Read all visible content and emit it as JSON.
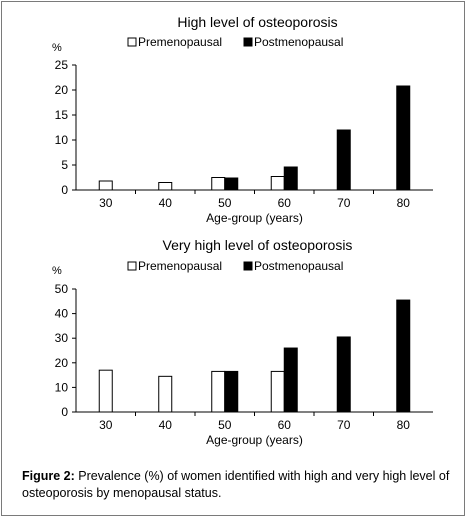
{
  "chart_data": [
    {
      "type": "bar",
      "title": "High level of osteoporosis",
      "xlabel": "Age-group (years)",
      "ylabel": "%",
      "categories": [
        "30",
        "40",
        "50",
        "60",
        "70",
        "80"
      ],
      "ylim": [
        0,
        25
      ],
      "yticks": [
        "0",
        "5",
        "10",
        "15",
        "20",
        "25"
      ],
      "legend_position": "top",
      "grid": false,
      "series": [
        {
          "name": "Premenopausal",
          "color": "#ffffff",
          "values": [
            1.8,
            1.5,
            2.5,
            2.7,
            null,
            null
          ]
        },
        {
          "name": "Postmenopausal",
          "color": "#000000",
          "values": [
            null,
            null,
            2.4,
            4.6,
            12.0,
            20.8
          ]
        }
      ]
    },
    {
      "type": "bar",
      "title": "Very high level of osteoporosis",
      "xlabel": "Age-group (years)",
      "ylabel": "%",
      "categories": [
        "30",
        "40",
        "50",
        "60",
        "70",
        "80"
      ],
      "ylim": [
        0,
        50
      ],
      "yticks": [
        "0",
        "10",
        "20",
        "30",
        "40",
        "50"
      ],
      "legend_position": "top",
      "grid": false,
      "series": [
        {
          "name": "Premenopausal",
          "color": "#ffffff",
          "values": [
            17.0,
            14.5,
            16.5,
            16.5,
            null,
            null
          ]
        },
        {
          "name": "Postmenopausal",
          "color": "#000000",
          "values": [
            null,
            null,
            16.5,
            26.0,
            30.5,
            45.5
          ]
        }
      ]
    }
  ],
  "caption": {
    "label": "Figure 2:",
    "text": " Prevalence (%) of women identified with high and very high level of osteoporosis by menopausal status."
  }
}
